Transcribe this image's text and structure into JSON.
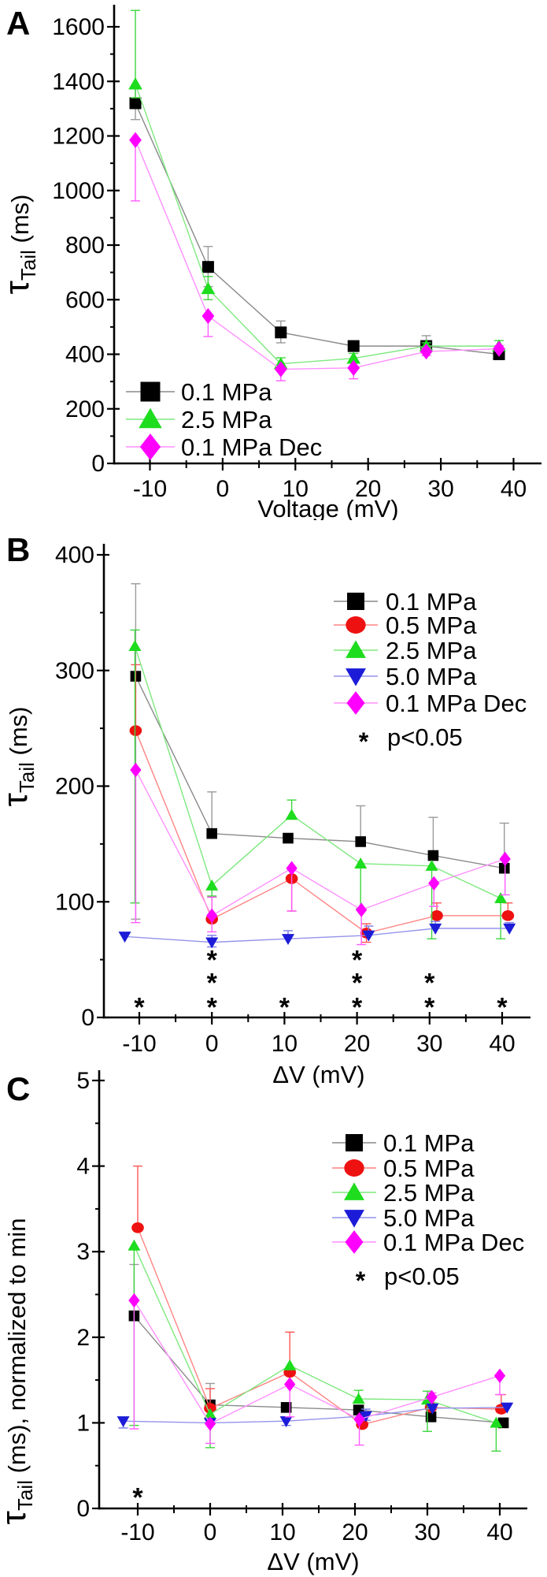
{
  "sig_note": {
    "symbol": "*",
    "label": "p<0.05"
  },
  "colors": {
    "black": "#000000",
    "red": "#ee1111",
    "green": "#1edc1e",
    "blue": "#1c1cd8",
    "magenta": "#ff00ff",
    "violet_star": "#ee82ee",
    "blue_star": "#2424e8",
    "red_star": "#ee1111",
    "axis": "#000000"
  },
  "chart_data": [
    {
      "panel": "A",
      "type": "line",
      "xlabel": "Voltage (mV)",
      "ylabel": {
        "tau": "τ",
        "sub": "Tail",
        "rest": " (ms)"
      },
      "xticks": [
        -10,
        0,
        10,
        20,
        30,
        40
      ],
      "yticks": [
        0,
        200,
        400,
        600,
        800,
        1000,
        1200,
        1400,
        1600
      ],
      "xlim": [
        -15,
        44
      ],
      "ylim": [
        0,
        1700
      ],
      "grid": false,
      "legend_pos": "bottom-left",
      "show_sig_note": false,
      "series": [
        {
          "name": "0.1 MPa",
          "marker": "square",
          "color": "#000000",
          "line_color": "#8a8a8a",
          "err_color": "#9a9a9a",
          "x": [
            -12,
            -2,
            8,
            18,
            28,
            38
          ],
          "y": [
            1320,
            720,
            480,
            430,
            430,
            400
          ],
          "err_up": [
            60,
            75,
            42,
            17,
            38,
            12
          ],
          "err_down": [
            60,
            72,
            38,
            15,
            0,
            18
          ]
        },
        {
          "name": "2.5 MPa",
          "marker": "triangle",
          "color": "#1edc1e",
          "line_color": "#7fe87f",
          "err_color": "#3ed63e",
          "x": [
            -12,
            -2,
            8,
            18,
            28,
            38
          ],
          "y": [
            1390,
            640,
            365,
            385,
            430,
            430
          ],
          "err_up": [
            270,
            45,
            22,
            18,
            12,
            20
          ],
          "err_down": [
            50,
            40,
            18,
            0,
            0,
            0
          ]
        },
        {
          "name": "0.1 MPa Dec",
          "marker": "diamond",
          "color": "#ff00ff",
          "line_color": "#ff90ff",
          "err_color": "#ff5cff",
          "x": [
            -12,
            -2,
            8,
            18,
            28,
            38
          ],
          "y": [
            1185,
            540,
            345,
            350,
            410,
            420
          ],
          "err_up": [
            0,
            0,
            0,
            0,
            12,
            12
          ],
          "err_down": [
            223,
            75,
            42,
            40,
            15,
            0
          ]
        }
      ],
      "asterisks": []
    },
    {
      "panel": "B",
      "type": "line",
      "xlabel": "ΔV (mV)",
      "ylabel": {
        "tau": "τ",
        "sub": "Tail",
        "rest": " (ms)"
      },
      "xticks": [
        -10,
        0,
        10,
        20,
        30,
        40
      ],
      "yticks": [
        0,
        100,
        200,
        300,
        400
      ],
      "xlim": [
        -15,
        44
      ],
      "ylim": [
        0,
        400
      ],
      "grid": false,
      "legend_pos": "top-right",
      "show_sig_note": true,
      "series": [
        {
          "name": "0.1 MPa",
          "marker": "square",
          "color": "#000000",
          "line_color": "#8a8a8a",
          "err_color": "#9a9a9a",
          "x": [
            -10.5,
            0,
            10.5,
            20.5,
            30.5,
            40.3
          ],
          "y": [
            295,
            159,
            155,
            152,
            140,
            129
          ],
          "err_up": [
            80,
            36,
            0,
            31,
            33,
            39
          ],
          "err_down": [
            210,
            0,
            0,
            0,
            0,
            0
          ]
        },
        {
          "name": "0.5 MPa",
          "marker": "circle",
          "color": "#ee1111",
          "line_color": "#ff8484",
          "err_color": "#ff5555",
          "x": [
            -10.5,
            0,
            11,
            21.3,
            31,
            40.8
          ],
          "y": [
            248,
            85,
            120,
            73,
            88,
            88
          ],
          "err_up": [
            57,
            19,
            0,
            8,
            11,
            11
          ],
          "err_down": [
            0,
            0,
            28,
            8,
            0,
            0
          ]
        },
        {
          "name": "2.5 MPa",
          "marker": "triangle",
          "color": "#1edc1e",
          "line_color": "#7fe87f",
          "err_color": "#3ed63e",
          "x": [
            -10.6,
            0,
            11,
            20.5,
            30.3,
            39.8
          ],
          "y": [
            321,
            114,
            175,
            133,
            131,
            103
          ],
          "err_up": [
            14,
            0,
            13,
            0,
            0,
            0
          ],
          "err_down": [
            222,
            9,
            0,
            39,
            63,
            35
          ]
        },
        {
          "name": "5.0 MPa",
          "marker": "triangle-down",
          "color": "#1c1cd8",
          "line_color": "#9494ec",
          "err_color": "#7a7ae8",
          "x": [
            -12,
            0,
            10.5,
            21.6,
            30.8,
            41
          ],
          "y": [
            70,
            65,
            68,
            71,
            77,
            77
          ],
          "err_up": [
            0,
            6,
            7,
            8,
            6,
            5
          ],
          "err_down": [
            0,
            4,
            0,
            0,
            0,
            0
          ]
        },
        {
          "name": "0.1 MPa Dec",
          "marker": "diamond",
          "color": "#ff00ff",
          "line_color": "#ff90ff",
          "err_color": "#ff5cff",
          "x": [
            -10.5,
            0,
            11,
            20.6,
            30.6,
            40.4
          ],
          "y": [
            214,
            88,
            129,
            93,
            116,
            137
          ],
          "err_up": [
            0,
            16,
            0,
            0,
            0,
            0
          ],
          "err_down": [
            132,
            14,
            37,
            30,
            20,
            31
          ]
        }
      ],
      "asterisks": [
        {
          "x": 0,
          "y": 55,
          "color": "#ee1111"
        },
        {
          "x": 20,
          "y": 55,
          "color": "#ee1111"
        },
        {
          "x": 0,
          "y": 35,
          "color": "#2424e8"
        },
        {
          "x": 20,
          "y": 35,
          "color": "#2424e8"
        },
        {
          "x": 30,
          "y": 35,
          "color": "#ee1111"
        },
        {
          "x": -10,
          "y": 14,
          "color": "#2424e8"
        },
        {
          "x": 0,
          "y": 14,
          "color": "#ee82ee"
        },
        {
          "x": 10,
          "y": 14,
          "color": "#2424e8"
        },
        {
          "x": 20,
          "y": 14,
          "color": "#ee82ee"
        },
        {
          "x": 30,
          "y": 14,
          "color": "#2424e8"
        },
        {
          "x": 40,
          "y": 14,
          "color": "#2424e8"
        }
      ]
    },
    {
      "panel": "C",
      "type": "line",
      "xlabel": "ΔV (mV)",
      "ylabel": {
        "tau": "τ",
        "sub": "Tail",
        "rest": " (ms), normalized to min"
      },
      "xticks": [
        -10,
        0,
        10,
        20,
        30,
        40
      ],
      "yticks": [
        0,
        1,
        2,
        3,
        4,
        5
      ],
      "xlim": [
        -15,
        44
      ],
      "ylim": [
        0,
        5
      ],
      "grid": false,
      "legend_pos": "top-right",
      "show_sig_note": true,
      "series": [
        {
          "name": "0.1 MPa",
          "marker": "square",
          "color": "#000000",
          "line_color": "#8a8a8a",
          "err_color": "#9a9a9a",
          "x": [
            -10.5,
            0,
            10.5,
            20.5,
            30.5,
            40.5
          ],
          "y": [
            2.25,
            1.21,
            1.18,
            1.15,
            1.07,
            1.0
          ],
          "err_up": [
            0.6,
            0.25,
            0,
            0,
            0,
            0
          ],
          "err_down": [
            0,
            0,
            0,
            0,
            0,
            0
          ]
        },
        {
          "name": "0.5 MPa",
          "marker": "circle",
          "color": "#ee1111",
          "line_color": "#ff8484",
          "err_color": "#ff5555",
          "x": [
            -10,
            0,
            11,
            21,
            30.5,
            40.2
          ],
          "y": [
            3.28,
            1.17,
            1.59,
            0.98,
            1.18,
            1.16
          ],
          "err_up": [
            0.72,
            0.23,
            0.47,
            0,
            0.12,
            0.17
          ],
          "err_down": [
            0,
            0,
            0,
            0,
            0,
            0
          ]
        },
        {
          "name": "2.5 MPa",
          "marker": "triangle",
          "color": "#1edc1e",
          "line_color": "#7fe87f",
          "err_color": "#3ed63e",
          "x": [
            -10.5,
            0,
            11,
            20.5,
            30,
            39.5
          ],
          "y": [
            3.07,
            1.1,
            1.67,
            1.28,
            1.27,
            1.0
          ],
          "err_up": [
            0,
            0,
            0,
            0.1,
            0.1,
            0
          ],
          "err_down": [
            2.1,
            0.39,
            0,
            0,
            0.37,
            0.33
          ]
        },
        {
          "name": "5.0 MPa",
          "marker": "triangle-down",
          "color": "#1c1cd8",
          "line_color": "#9494ec",
          "err_color": "#7a7ae8",
          "x": [
            -12,
            0,
            10.5,
            21.5,
            30.7,
            41
          ],
          "y": [
            1.02,
            1.0,
            1.02,
            1.08,
            1.17,
            1.18
          ],
          "err_up": [
            0,
            0,
            0.05,
            0.08,
            0.05,
            0.05
          ],
          "err_down": [
            0.08,
            0,
            0.05,
            0.05,
            0,
            0
          ]
        },
        {
          "name": "0.1 MPa Dec",
          "marker": "diamond",
          "color": "#ff00ff",
          "line_color": "#ff90ff",
          "err_color": "#ff5cff",
          "x": [
            -10.5,
            0,
            11,
            20.6,
            30.6,
            40
          ],
          "y": [
            2.43,
            0.99,
            1.45,
            1.04,
            1.3,
            1.55
          ],
          "err_up": [
            0,
            0,
            0,
            0,
            0.05,
            0
          ],
          "err_down": [
            1.5,
            0.23,
            0.38,
            0.3,
            0,
            0.22
          ]
        }
      ],
      "asterisks": [
        {
          "x": -10,
          "y": 0.2,
          "color": "#2424e8"
        }
      ]
    }
  ]
}
